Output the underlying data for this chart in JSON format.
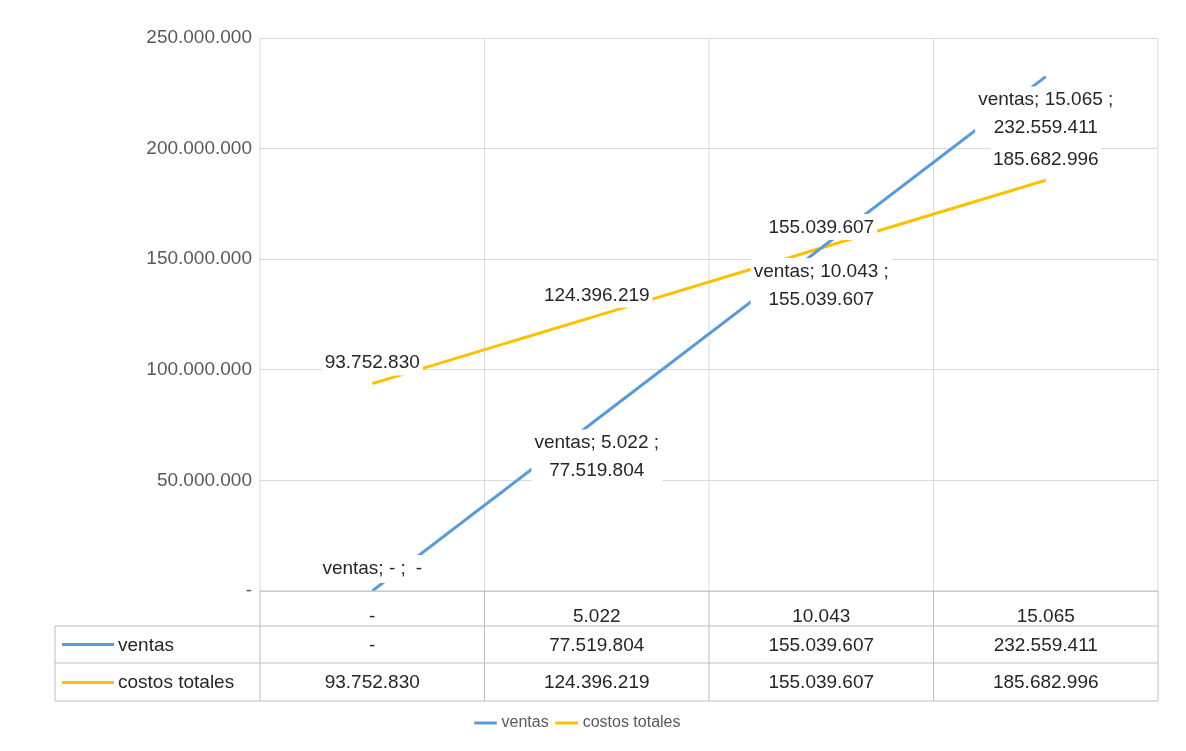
{
  "chart_data": {
    "type": "line",
    "categories": [
      "-",
      "5.022",
      "10.043",
      "15.065"
    ],
    "series": [
      {
        "name": "ventas",
        "color": "#5b9bd5",
        "values": [
          0,
          77519804,
          155039607,
          232559411
        ],
        "value_labels": [
          "-",
          "77.519.804",
          "155.039.607",
          "232.559.411"
        ]
      },
      {
        "name": "costos totales",
        "color": "#ffc000",
        "values": [
          93752830,
          124396219,
          155039607,
          185682996
        ],
        "value_labels": [
          "93.752.830",
          "124.396.219",
          "155.039.607",
          "185.682.996"
        ]
      }
    ],
    "ylim": [
      0,
      250000000
    ],
    "yticks": [
      {
        "value": 0,
        "label": "-"
      },
      {
        "value": 50000000,
        "label": "50.000.000"
      },
      {
        "value": 100000000,
        "label": "100.000.000"
      },
      {
        "value": 150000000,
        "label": "150.000.000"
      },
      {
        "value": 200000000,
        "label": "200.000.000"
      },
      {
        "value": 250000000,
        "label": "250.000.000"
      }
    ],
    "annotations": [
      {
        "text": "ventas; - ;",
        "x": "-",
        "y": 0
      },
      {
        "text": "ventas; 5.022 ;",
        "x": "5.022",
        "y": 77519804
      },
      {
        "text": "ventas; 10.043 ;",
        "x": "10.043",
        "y": 155039607
      },
      {
        "text": "ventas; 15.065 ;",
        "x": "15.065",
        "y": 232559411
      }
    ],
    "grid": true,
    "legend": "bottom",
    "marker": "none",
    "line_style": "solid"
  }
}
